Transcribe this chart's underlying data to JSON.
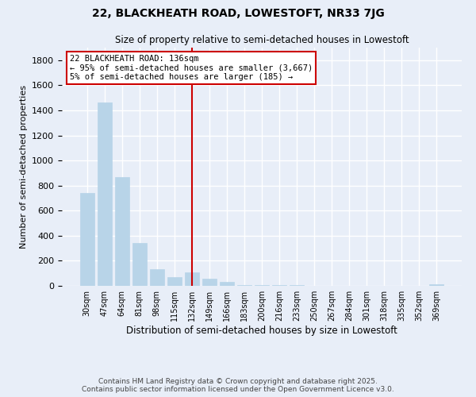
{
  "title1": "22, BLACKHEATH ROAD, LOWESTOFT, NR33 7JG",
  "title2": "Size of property relative to semi-detached houses in Lowestoft",
  "xlabel": "Distribution of semi-detached houses by size in Lowestoft",
  "ylabel": "Number of semi-detached properties",
  "categories": [
    "30sqm",
    "47sqm",
    "64sqm",
    "81sqm",
    "98sqm",
    "115sqm",
    "132sqm",
    "149sqm",
    "166sqm",
    "183sqm",
    "200sqm",
    "216sqm",
    "233sqm",
    "250sqm",
    "267sqm",
    "284sqm",
    "301sqm",
    "318sqm",
    "335sqm",
    "352sqm",
    "369sqm"
  ],
  "values": [
    740,
    1460,
    870,
    340,
    130,
    70,
    110,
    60,
    30,
    8,
    8,
    5,
    5,
    3,
    3,
    2,
    2,
    1,
    1,
    1,
    10
  ],
  "bar_color": "#b8d4e8",
  "marker_index": 6,
  "marker_color": "#cc0000",
  "annotation_line1": "22 BLACKHEATH ROAD: 136sqm",
  "annotation_line2": "← 95% of semi-detached houses are smaller (3,667)",
  "annotation_line3": "5% of semi-detached houses are larger (185) →",
  "footer1": "Contains HM Land Registry data © Crown copyright and database right 2025.",
  "footer2": "Contains public sector information licensed under the Open Government Licence v3.0.",
  "ylim": [
    0,
    1900
  ],
  "background_color": "#e8eef8"
}
